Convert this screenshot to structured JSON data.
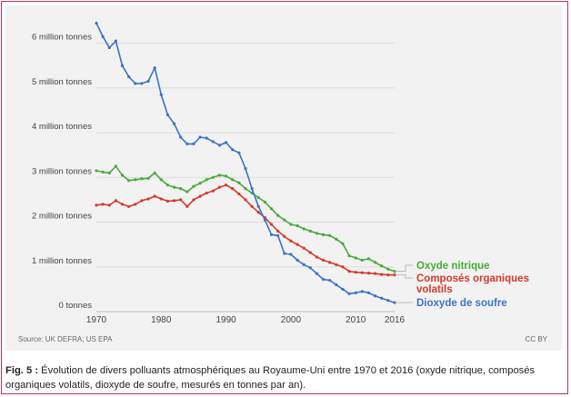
{
  "chart_data": {
    "type": "line",
    "title": "",
    "xlabel": "",
    "ylabel": "",
    "xlim": [
      1970,
      2016
    ],
    "ylim": [
      0,
      6.5
    ],
    "x_ticks": [
      1970,
      1980,
      1990,
      2000,
      2010,
      2016
    ],
    "x_tick_labels": [
      "1970",
      "1980",
      "1990",
      "2000",
      "2010",
      "2016"
    ],
    "y_ticks": [
      0,
      1,
      2,
      3,
      4,
      5,
      6
    ],
    "y_tick_labels": [
      "0 tonnes",
      "1 million tonnes",
      "2 million tonnes",
      "3 million tonnes",
      "4 million tonnes",
      "5 million tonnes",
      "6 million tonnes"
    ],
    "grid": "horizontal",
    "legend": "right, labels at line ends",
    "x": [
      1970,
      1971,
      1972,
      1973,
      1974,
      1975,
      1976,
      1977,
      1978,
      1979,
      1980,
      1981,
      1982,
      1983,
      1984,
      1985,
      1986,
      1987,
      1988,
      1989,
      1990,
      1991,
      1992,
      1993,
      1994,
      1995,
      1996,
      1997,
      1998,
      1999,
      2000,
      2001,
      2002,
      2003,
      2004,
      2005,
      2006,
      2007,
      2008,
      2009,
      2010,
      2011,
      2012,
      2013,
      2014,
      2015,
      2016
    ],
    "series": [
      {
        "name": "Oxyde nitrique",
        "color": "#4aa83c",
        "values": [
          3.15,
          3.12,
          3.1,
          3.25,
          3.05,
          2.93,
          2.95,
          2.97,
          2.98,
          3.1,
          2.95,
          2.83,
          2.78,
          2.75,
          2.68,
          2.8,
          2.87,
          2.95,
          3.0,
          3.05,
          3.03,
          2.95,
          2.88,
          2.75,
          2.65,
          2.55,
          2.45,
          2.3,
          2.15,
          2.05,
          1.95,
          1.92,
          1.85,
          1.8,
          1.75,
          1.72,
          1.7,
          1.62,
          1.52,
          1.25,
          1.2,
          1.15,
          1.18,
          1.1,
          1.02,
          0.95,
          0.9
        ]
      },
      {
        "name": "Composés organiques volatils",
        "color": "#d23a28",
        "values": [
          2.38,
          2.4,
          2.38,
          2.48,
          2.4,
          2.35,
          2.4,
          2.48,
          2.52,
          2.58,
          2.52,
          2.47,
          2.48,
          2.5,
          2.35,
          2.5,
          2.58,
          2.65,
          2.7,
          2.78,
          2.83,
          2.75,
          2.63,
          2.5,
          2.35,
          2.22,
          2.1,
          1.95,
          1.8,
          1.68,
          1.58,
          1.5,
          1.42,
          1.32,
          1.22,
          1.15,
          1.1,
          1.05,
          1.0,
          0.9,
          0.88,
          0.87,
          0.86,
          0.85,
          0.83,
          0.82,
          0.82
        ]
      },
      {
        "name": "Dioxyde de soufre",
        "color": "#3a73c4",
        "values": [
          6.45,
          6.15,
          5.9,
          6.05,
          5.5,
          5.25,
          5.1,
          5.1,
          5.15,
          5.45,
          4.85,
          4.4,
          4.2,
          3.9,
          3.75,
          3.75,
          3.9,
          3.88,
          3.8,
          3.72,
          3.78,
          3.62,
          3.55,
          3.2,
          2.75,
          2.35,
          2.05,
          1.72,
          1.7,
          1.3,
          1.28,
          1.15,
          1.05,
          0.98,
          0.85,
          0.72,
          0.7,
          0.6,
          0.5,
          0.4,
          0.42,
          0.45,
          0.42,
          0.35,
          0.3,
          0.25,
          0.2
        ]
      }
    ],
    "legend_lines": [
      [
        "Oxyde nitrique"
      ],
      [
        "Composés organiques",
        "volatils"
      ],
      [
        "Dioxyde de soufre"
      ]
    ],
    "source": "Source: UK DEFRA; US EPA",
    "license": "CC BY"
  },
  "caption": {
    "label": "Fig. 5 :",
    "text": " Évolution de divers polluants atmosphériques au Royaume-Uni entre 1970 et 2016 (oxyde nitrique, composés organiques volatils, dioxyde de soufre, mesurés en tonnes par an)."
  }
}
